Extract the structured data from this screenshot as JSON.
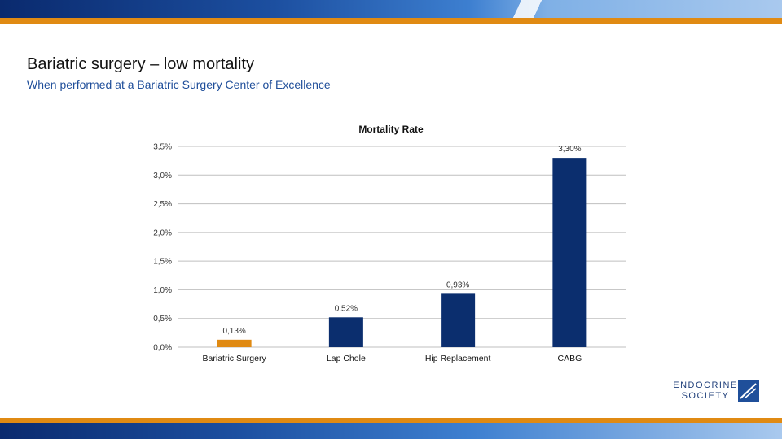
{
  "slide": {
    "title": "Bariatric surgery – low mortality",
    "subtitle": "When performed at a Bariatric Surgery Center of Excellence"
  },
  "logo": {
    "line1": "ENDOCRINE",
    "line2": "SOCIETY"
  },
  "colors": {
    "highlight_bar": "#e08a13",
    "bar": "#0b2e6e",
    "grid": "#bfbfbf",
    "accent_stripe": "#e08a13",
    "banner_dark": "#0a2a6e"
  },
  "chart_data": {
    "type": "bar",
    "title": "Mortality Rate",
    "categories": [
      "Bariatric Surgery",
      "Lap Chole",
      "Hip Replacement",
      "CABG"
    ],
    "values": [
      0.13,
      0.52,
      0.93,
      3.3
    ],
    "data_labels": [
      "0,13%",
      "0,52%",
      "0,93%",
      "3,30%"
    ],
    "ylim": [
      0,
      3.5
    ],
    "yticks": [
      0,
      0.5,
      1.0,
      1.5,
      2.0,
      2.5,
      3.0,
      3.5
    ],
    "ytick_labels": [
      "0,0%",
      "0,5%",
      "1,0%",
      "1,5%",
      "2,0%",
      "2,5%",
      "3,0%",
      "3,5%"
    ],
    "grid": true,
    "legend": "none",
    "xlabel": "",
    "ylabel": ""
  }
}
